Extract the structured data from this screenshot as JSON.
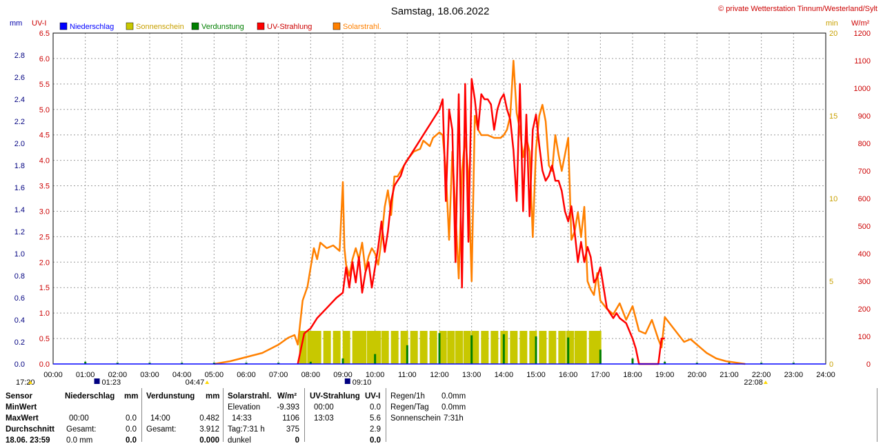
{
  "header": {
    "title": "Samstag, 18.06.2022",
    "copyright": "© private Wetterstation Tinnum/Westerland/Sylt"
  },
  "axes": {
    "left1_unit": "mm",
    "left2_unit": "UV-I",
    "right1_unit": "min",
    "right2_unit": "W/m²"
  },
  "legend": [
    {
      "label": "Niederschlag",
      "color": "#0000ff"
    },
    {
      "label": "Sonnenschein",
      "color": "#c8c800"
    },
    {
      "label": "Verdunstung",
      "color": "#007f00"
    },
    {
      "label": "UV-Strahlung",
      "color": "#ff0000"
    },
    {
      "label": "Solarstrahl.",
      "color": "#ff8000"
    }
  ],
  "sun_markers": [
    {
      "label": "17:20",
      "kind": "sunset-prev"
    },
    {
      "label": "01:23",
      "kind": "moonset"
    },
    {
      "label": "04:47",
      "kind": "sunrise"
    },
    {
      "label": "09:10",
      "kind": "moonrise"
    },
    {
      "label": "22:08",
      "kind": "sunset"
    }
  ],
  "chart_data": {
    "type": "line",
    "title": "Samstag, 18.06.2022",
    "x_ticks": [
      "00:00",
      "01:00",
      "02:00",
      "03:00",
      "04:00",
      "05:00",
      "06:00",
      "07:00",
      "08:00",
      "09:00",
      "10:00",
      "11:00",
      "12:00",
      "13:00",
      "14:00",
      "15:00",
      "16:00",
      "17:00",
      "18:00",
      "19:00",
      "20:00",
      "21:00",
      "22:00",
      "23:00",
      "24:00"
    ],
    "xlim_hours": [
      0,
      24
    ],
    "axis_mm": {
      "label": "mm",
      "ylim": [
        0,
        3.0
      ],
      "ticks": [
        "0.0",
        "0.2",
        "0.4",
        "0.6",
        "0.8",
        "1.0",
        "1.2",
        "1.4",
        "1.6",
        "1.8",
        "2.0",
        "2.2",
        "2.4",
        "2.6",
        "2.8"
      ]
    },
    "axis_uv": {
      "label": "UV-I",
      "ylim": [
        0,
        6.5
      ],
      "ticks": [
        "0.0",
        "0.5",
        "1.0",
        "1.5",
        "2.0",
        "2.5",
        "3.0",
        "3.5",
        "4.0",
        "4.5",
        "5.0",
        "5.5",
        "6.0",
        "6.5"
      ]
    },
    "axis_min": {
      "label": "min",
      "ylim": [
        0,
        20
      ],
      "ticks": [
        "0",
        "5",
        "10",
        "15",
        "20"
      ]
    },
    "axis_wm2": {
      "label": "W/m²",
      "ylim": [
        0,
        1200
      ],
      "ticks": [
        "0",
        "100",
        "200",
        "300",
        "400",
        "500",
        "600",
        "700",
        "800",
        "900",
        "1000",
        "1100",
        "1200"
      ]
    },
    "grid": true,
    "series": [
      {
        "name": "Solarstrahl.",
        "color": "#ff8000",
        "unit": "W/m²",
        "x_hours": [
          5.0,
          5.5,
          6.0,
          6.5,
          7.0,
          7.3,
          7.5,
          7.6,
          7.75,
          7.9,
          8.0,
          8.1,
          8.2,
          8.3,
          8.4,
          8.5,
          8.7,
          8.9,
          9.0,
          9.05,
          9.1,
          9.2,
          9.3,
          9.4,
          9.5,
          9.6,
          9.7,
          9.8,
          9.9,
          10.0,
          10.1,
          10.2,
          10.3,
          10.4,
          10.5,
          10.6,
          10.7,
          10.8,
          10.9,
          11.0,
          11.2,
          11.4,
          11.5,
          11.7,
          11.8,
          12.0,
          12.1,
          12.2,
          12.3,
          12.4,
          12.5,
          12.6,
          12.7,
          12.8,
          12.9,
          13.0,
          13.1,
          13.2,
          13.3,
          13.4,
          13.5,
          13.7,
          13.9,
          14.0,
          14.1,
          14.2,
          14.3,
          14.4,
          14.5,
          14.6,
          14.7,
          14.8,
          14.9,
          15.0,
          15.1,
          15.2,
          15.3,
          15.4,
          15.5,
          15.6,
          15.7,
          15.8,
          15.9,
          16.0,
          16.1,
          16.2,
          16.3,
          16.4,
          16.5,
          16.6,
          16.7,
          16.8,
          16.9,
          17.0,
          17.2,
          17.4,
          17.6,
          17.8,
          18.0,
          18.2,
          18.4,
          18.6,
          18.8,
          18.9,
          19.0,
          19.2,
          19.4,
          19.6,
          19.8,
          20.0,
          20.3,
          20.6,
          20.9,
          21.2,
          21.5
        ],
        "values": [
          0,
          10,
          25,
          40,
          70,
          95,
          105,
          70,
          230,
          280,
          350,
          420,
          380,
          440,
          430,
          420,
          430,
          410,
          660,
          420,
          360,
          320,
          380,
          420,
          380,
          440,
          340,
          390,
          420,
          400,
          360,
          450,
          570,
          630,
          540,
          680,
          680,
          700,
          720,
          740,
          770,
          780,
          810,
          790,
          820,
          840,
          830,
          700,
          450,
          770,
          550,
          310,
          700,
          820,
          690,
          300,
          900,
          850,
          830,
          830,
          830,
          820,
          820,
          830,
          850,
          900,
          1100,
          910,
          850,
          750,
          820,
          770,
          460,
          780,
          900,
          940,
          880,
          720,
          700,
          830,
          760,
          700,
          760,
          820,
          450,
          480,
          550,
          460,
          570,
          300,
          270,
          250,
          330,
          230,
          200,
          180,
          220,
          160,
          210,
          120,
          110,
          160,
          90,
          60,
          170,
          140,
          110,
          80,
          90,
          70,
          40,
          20,
          10,
          5,
          0
        ]
      },
      {
        "name": "UV-Strahlung",
        "color": "#ff0000",
        "unit": "UV-I",
        "x_hours": [
          7.6,
          7.8,
          8.0,
          8.2,
          8.5,
          8.8,
          9.0,
          9.1,
          9.2,
          9.3,
          9.4,
          9.5,
          9.6,
          9.7,
          9.8,
          9.9,
          10.0,
          10.1,
          10.2,
          10.3,
          10.4,
          10.5,
          10.6,
          10.7,
          10.8,
          10.9,
          11.0,
          11.1,
          11.2,
          11.4,
          11.6,
          11.8,
          12.0,
          12.1,
          12.2,
          12.3,
          12.4,
          12.5,
          12.6,
          12.7,
          12.8,
          12.9,
          13.0,
          13.1,
          13.2,
          13.3,
          13.4,
          13.5,
          13.6,
          13.7,
          13.8,
          13.9,
          14.0,
          14.1,
          14.2,
          14.3,
          14.4,
          14.5,
          14.6,
          14.7,
          14.8,
          14.9,
          15.0,
          15.1,
          15.2,
          15.3,
          15.4,
          15.5,
          15.6,
          15.7,
          15.8,
          15.9,
          16.0,
          16.1,
          16.2,
          16.3,
          16.4,
          16.5,
          16.6,
          16.7,
          16.8,
          16.9,
          17.0,
          17.1,
          17.2,
          17.3,
          17.4,
          17.5,
          17.6,
          17.8,
          18.0,
          18.1,
          18.2,
          18.3,
          18.8,
          18.9,
          19.0
        ],
        "values": [
          0.0,
          0.6,
          0.7,
          0.9,
          1.1,
          1.3,
          1.4,
          1.9,
          1.5,
          2.0,
          1.6,
          2.1,
          1.4,
          1.8,
          2.0,
          1.5,
          1.9,
          2.3,
          2.8,
          2.2,
          2.6,
          3.2,
          3.5,
          3.6,
          3.7,
          3.9,
          4.0,
          4.1,
          4.2,
          4.4,
          4.6,
          4.8,
          5.0,
          5.2,
          3.2,
          5.0,
          4.6,
          2.0,
          5.3,
          1.5,
          5.5,
          2.4,
          5.6,
          5.2,
          4.6,
          5.3,
          5.2,
          5.2,
          5.1,
          4.6,
          5.0,
          5.2,
          5.3,
          5.0,
          4.8,
          4.2,
          3.2,
          5.5,
          3.0,
          4.9,
          2.9,
          4.6,
          4.9,
          4.3,
          3.8,
          3.6,
          3.7,
          3.9,
          3.6,
          3.6,
          3.4,
          3.0,
          2.8,
          3.1,
          2.6,
          2.0,
          2.4,
          2.0,
          2.3,
          2.1,
          1.6,
          1.7,
          1.9,
          1.5,
          1.1,
          1.0,
          0.9,
          1.0,
          0.9,
          0.8,
          0.5,
          0.3,
          0.0,
          0.0,
          0.0,
          0.5,
          0.5
        ]
      },
      {
        "name": "Sonnenschein",
        "color": "#c8c800",
        "unit": "min",
        "type": "bars",
        "x_hours": [
          7.75,
          8.0,
          8.2,
          8.5,
          8.8,
          9.1,
          9.4,
          9.6,
          9.85,
          10.05,
          10.3,
          10.6,
          10.9,
          11.2,
          11.5,
          11.8,
          12.1,
          12.35,
          12.6,
          12.85,
          13.1,
          13.4,
          13.7,
          14.0,
          14.3,
          14.6,
          14.9,
          15.2,
          15.5,
          15.8,
          16.05,
          16.3,
          16.45,
          16.75,
          16.9
        ],
        "values": [
          2,
          2,
          2,
          2,
          2,
          2,
          2,
          2,
          2,
          2,
          2,
          2,
          2,
          2,
          2,
          2,
          2,
          2,
          2,
          2,
          2,
          2,
          2,
          2,
          2,
          2,
          2,
          2,
          2,
          2,
          2,
          2,
          2,
          2,
          2
        ]
      },
      {
        "name": "Verdunstung",
        "color": "#007f00",
        "unit": "mm",
        "type": "bars",
        "x_hours": [
          1.0,
          2.0,
          3.0,
          4.0,
          5.0,
          6.0,
          7.0,
          8.0,
          9.0,
          10.0,
          11.0,
          12.0,
          13.0,
          14.0,
          15.0,
          16.0,
          17.0,
          18.0,
          19.0,
          20.0,
          21.0,
          22.0,
          23.0
        ],
        "values": [
          0.02,
          0.01,
          0.005,
          0.005,
          0.005,
          0.005,
          0.01,
          0.02,
          0.05,
          0.09,
          0.17,
          0.28,
          0.26,
          0.27,
          0.25,
          0.24,
          0.13,
          0.05,
          0.02,
          0.01,
          0.005,
          0.005,
          0.005
        ]
      },
      {
        "name": "Niederschlag",
        "color": "#0000ff",
        "unit": "mm",
        "type": "bars",
        "x_hours": [],
        "values": []
      }
    ]
  },
  "table": {
    "row_labels": [
      "Sensor",
      "MinWert",
      "MaxWert",
      "Durchschnitt",
      "18.06. 23:59"
    ],
    "niederschlag": {
      "header": "Niederschlag",
      "unit": "mm",
      "max_time": "00:00",
      "max_val": "0.0",
      "gesamt_label": "Gesamt:",
      "gesamt_val": "0.0",
      "last_val": "0.0 mm",
      "last_val2": "0.0"
    },
    "verdunstung": {
      "header": "Verdunstung",
      "unit": "mm",
      "max_time": "14:00",
      "max_val": "0.482",
      "gesamt_label": "Gesamt:",
      "gesamt_val": "3.912",
      "last_val": "0.000"
    },
    "solar": {
      "header": "Solarstrahl.",
      "unit": "W/m²",
      "elev_label": "Elevation",
      "elev_val": "-9.393",
      "max_time": "14:33",
      "max_val": "1106",
      "tag_label": "Tag:7:31 h",
      "tag_val": "375",
      "dunkel_label": "dunkel",
      "last_val": "0"
    },
    "uv": {
      "header": "UV-Strahlung",
      "unit": "UV-I",
      "min_time": "00:00",
      "min_val": "0.0",
      "max_time": "13:03",
      "max_val": "5.6",
      "avg_val": "2.9",
      "last_val": "0.0"
    },
    "regen": {
      "r1_label": "Regen/1h",
      "r1_val": "0.0mm",
      "r2_label": "Regen/Tag",
      "r2_val": "0.0mm",
      "r3_label": "Sonnenschein",
      "r3_val": "7:31h"
    }
  }
}
